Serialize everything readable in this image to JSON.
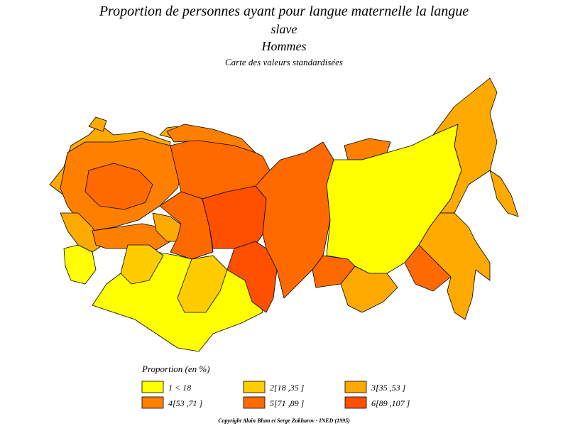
{
  "title": [
    "Proportion de personnes ayant pour langue maternelle la langue",
    "slave"
  ],
  "subtitle": "Hommes",
  "caption": "Carte des valeurs standardisées",
  "legend": {
    "title": "Proportion (en %)",
    "items": [
      {
        "label": "1  <  18",
        "color": "#ffff00"
      },
      {
        "label": "2[18 ,35 ]",
        "color": "#ffcc00"
      },
      {
        "label": "3[35 ,53 ]",
        "color": "#ffaa00"
      },
      {
        "label": "4[53 ,71 ]",
        "color": "#ff8000"
      },
      {
        "label": "5[71 ,89 ]",
        "color": "#ff6a00"
      },
      {
        "label": "6[89 ,107 ]",
        "color": "#ff5000"
      }
    ]
  },
  "copyright": "Copyright Alain Blum et Serge Zakharov  -  INED (1995)"
}
